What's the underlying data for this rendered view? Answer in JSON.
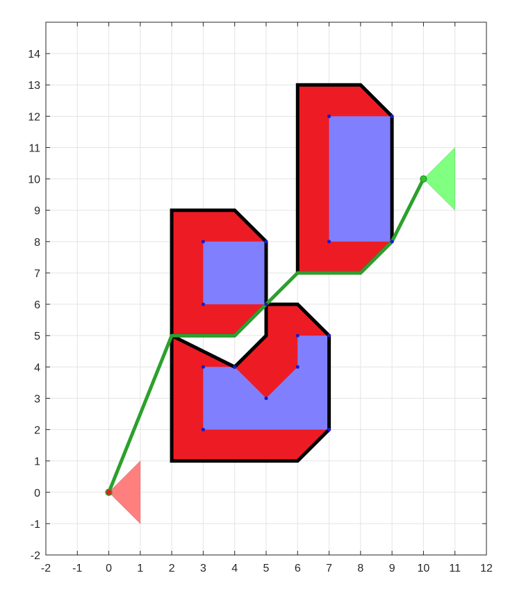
{
  "chart_data": {
    "type": "line",
    "title": "",
    "xlabel": "",
    "ylabel": "",
    "xlim": [
      -2,
      12
    ],
    "ylim": [
      -2,
      15
    ],
    "xticks": [
      -2,
      -1,
      0,
      1,
      2,
      3,
      4,
      5,
      6,
      7,
      8,
      9,
      10,
      11,
      12
    ],
    "yticks": [
      -2,
      -1,
      0,
      1,
      2,
      3,
      4,
      5,
      6,
      7,
      8,
      9,
      10,
      11,
      12,
      13,
      14
    ],
    "xtick_labels": [
      "-2",
      "-1",
      "0",
      "1",
      "2",
      "3",
      "4",
      "5",
      "6",
      "7",
      "8",
      "9",
      "10",
      "11",
      "12"
    ],
    "ytick_labels": [
      "-2",
      "-1",
      "0",
      "1",
      "2",
      "3",
      "4",
      "5",
      "6",
      "7",
      "8",
      "9",
      "10",
      "11",
      "12",
      "13",
      "14"
    ],
    "grid": true,
    "colors": {
      "obstacle_fill": "#ed1c24",
      "obstacle_outline": "#000000",
      "inner_fill": "#8080ff",
      "path": "#2ca02c",
      "start_marker": "#ff7f7f",
      "goal_marker": "#80ff80",
      "vertex_dot": "#1a1acc",
      "start_dot": "#e02020",
      "goal_dot": "#30c030"
    },
    "obstacles": [
      {
        "name": "bottom-obstacle",
        "outer": [
          [
            2,
            1
          ],
          [
            6,
            1
          ],
          [
            7,
            2
          ],
          [
            7,
            5
          ],
          [
            6,
            6
          ],
          [
            5,
            6
          ],
          [
            5,
            5
          ],
          [
            4,
            4
          ],
          [
            2,
            5
          ]
        ],
        "inner": [
          [
            3,
            2
          ],
          [
            7,
            2
          ],
          [
            7,
            5
          ],
          [
            6,
            5
          ],
          [
            6,
            4
          ],
          [
            5,
            3
          ],
          [
            4,
            4
          ],
          [
            3,
            4
          ]
        ]
      },
      {
        "name": "middle-obstacle",
        "outer": [
          [
            2,
            5
          ],
          [
            4,
            5
          ],
          [
            5,
            6
          ],
          [
            5,
            8
          ],
          [
            4,
            9
          ],
          [
            2,
            9
          ]
        ],
        "inner": [
          [
            3,
            6
          ],
          [
            5,
            6
          ],
          [
            5,
            8
          ],
          [
            3,
            8
          ]
        ]
      },
      {
        "name": "top-obstacle",
        "outer": [
          [
            6,
            7
          ],
          [
            8,
            7
          ],
          [
            9,
            8
          ],
          [
            9,
            12
          ],
          [
            8,
            13
          ],
          [
            6,
            13
          ]
        ],
        "inner": [
          [
            7,
            8
          ],
          [
            9,
            8
          ],
          [
            9,
            12
          ],
          [
            7,
            12
          ]
        ]
      }
    ],
    "vertices": [
      [
        3,
        2
      ],
      [
        7,
        2
      ],
      [
        7,
        5
      ],
      [
        6,
        5
      ],
      [
        6,
        4
      ],
      [
        5,
        3
      ],
      [
        4,
        4
      ],
      [
        3,
        4
      ],
      [
        3,
        6
      ],
      [
        5,
        6
      ],
      [
        5,
        8
      ],
      [
        3,
        8
      ],
      [
        7,
        8
      ],
      [
        9,
        8
      ],
      [
        9,
        12
      ],
      [
        7,
        12
      ]
    ],
    "path": {
      "x": [
        0,
        2,
        4,
        6,
        8,
        9,
        10
      ],
      "y": [
        0,
        5,
        5,
        7,
        7,
        8,
        10
      ]
    },
    "start": {
      "x": 0,
      "y": 0,
      "marker": [
        [
          0,
          0
        ],
        [
          1,
          1
        ],
        [
          1,
          -1
        ]
      ]
    },
    "goal": {
      "x": 10,
      "y": 10,
      "marker": [
        [
          10,
          10
        ],
        [
          11,
          11
        ],
        [
          11,
          9
        ]
      ]
    }
  }
}
